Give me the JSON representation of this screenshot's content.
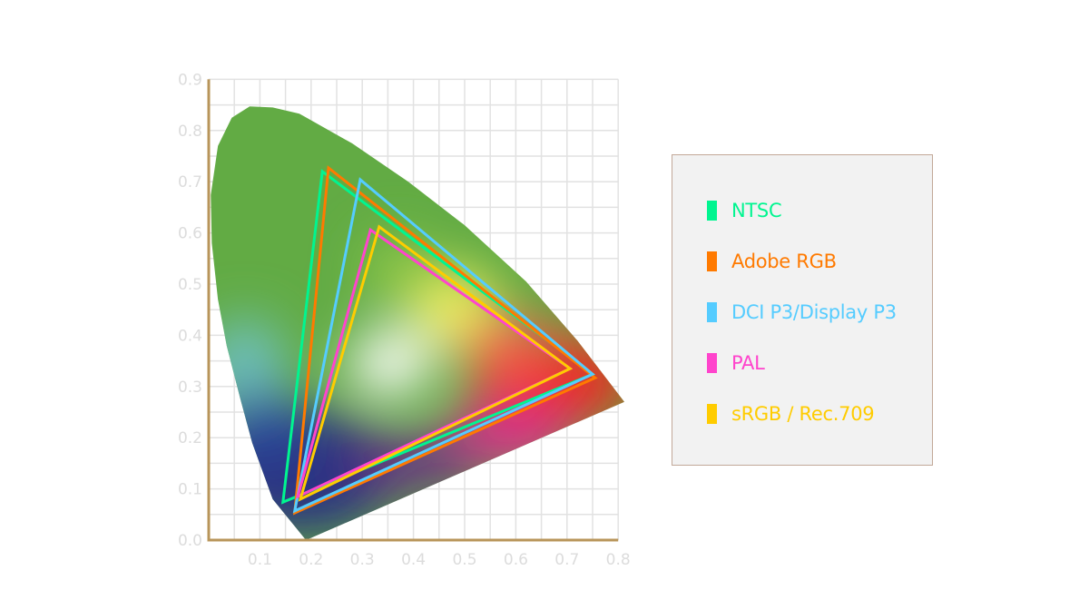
{
  "chart_data": {
    "type": "line",
    "title": "",
    "xlabel": "",
    "ylabel": "",
    "xlim": [
      0,
      0.8
    ],
    "ylim": [
      0,
      0.9
    ],
    "x_ticks": [
      "0.1",
      "0.2",
      "0.3",
      "0.4",
      "0.5",
      "0.6",
      "0.7",
      "0.8"
    ],
    "y_ticks": [
      "0.0",
      "0.1",
      "0.2",
      "0.3",
      "0.4",
      "0.5",
      "0.6",
      "0.7",
      "0.8",
      "0.9"
    ],
    "grid": true,
    "grid_step": 0.05,
    "legend_position": "right",
    "spectral_locus": [
      [
        0.19,
        0.0
      ],
      [
        0.125,
        0.08
      ],
      [
        0.085,
        0.19
      ],
      [
        0.062,
        0.275
      ],
      [
        0.035,
        0.38
      ],
      [
        0.018,
        0.47
      ],
      [
        0.006,
        0.58
      ],
      [
        0.004,
        0.674
      ],
      [
        0.018,
        0.77
      ],
      [
        0.045,
        0.825
      ],
      [
        0.08,
        0.847
      ],
      [
        0.125,
        0.845
      ],
      [
        0.177,
        0.833
      ],
      [
        0.28,
        0.775
      ],
      [
        0.39,
        0.7
      ],
      [
        0.5,
        0.615
      ],
      [
        0.62,
        0.505
      ],
      [
        0.72,
        0.39
      ],
      [
        0.812,
        0.27
      ]
    ],
    "series": [
      {
        "name": "NTSC",
        "color": "#00f590",
        "points": [
          [
            0.222,
            0.72
          ],
          [
            0.75,
            0.324
          ],
          [
            0.145,
            0.074
          ]
        ]
      },
      {
        "name": "Adobe RGB",
        "color": "#ff7a00",
        "points": [
          [
            0.234,
            0.727
          ],
          [
            0.755,
            0.317
          ],
          [
            0.168,
            0.053
          ]
        ]
      },
      {
        "name": "DCI P3/Display P3",
        "color": "#55ccff",
        "points": [
          [
            0.296,
            0.704
          ],
          [
            0.75,
            0.324
          ],
          [
            0.168,
            0.057
          ]
        ]
      },
      {
        "name": "PAL",
        "color": "#ff44cc",
        "points": [
          [
            0.316,
            0.606
          ],
          [
            0.706,
            0.335
          ],
          [
            0.174,
            0.085
          ]
        ]
      },
      {
        "name": "sRGB / Rec.709",
        "color": "#ffcc00",
        "points": [
          [
            0.333,
            0.612
          ],
          [
            0.706,
            0.335
          ],
          [
            0.179,
            0.08
          ]
        ]
      }
    ],
    "axis_color": "#b8955a"
  }
}
